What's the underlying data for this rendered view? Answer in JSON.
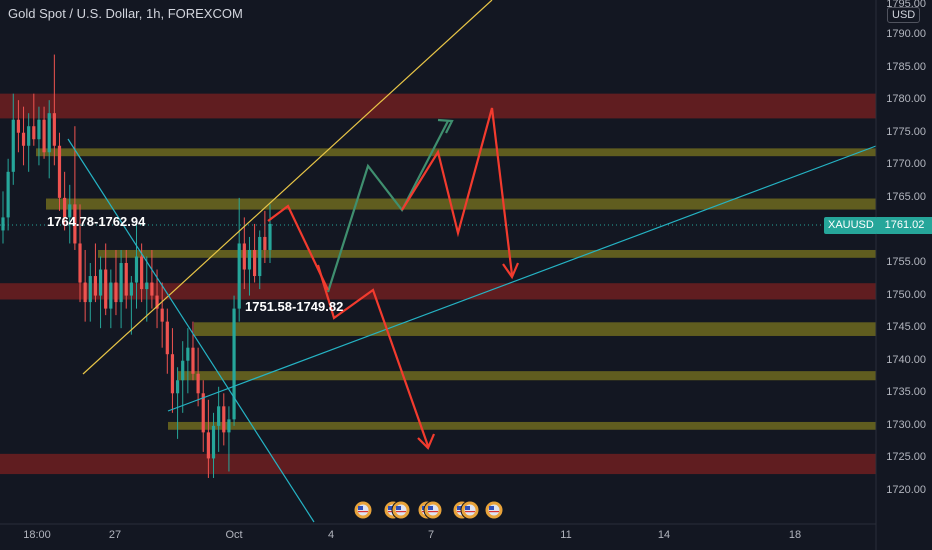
{
  "header": {
    "title": "Gold Spot / U.S. Dollar, 1h, FOREXCOM",
    "currency": "USD"
  },
  "price_tag": {
    "symbol": "XAUUSD",
    "price": "1761.02"
  },
  "colors": {
    "background": "#131722",
    "up": "#26a69a",
    "down": "#ef5350",
    "red_zone": "#7b2020",
    "yellow_zone": "#6e6a1e",
    "trend_yellow": "#e8c547",
    "trend_cyan": "#25b3c4",
    "path_green": "#3f8f6f",
    "path_red": "#f23b2e"
  },
  "chart_data": {
    "type": "candlestick",
    "title": "Gold Spot / U.S. Dollar, 1h, FOREXCOM",
    "ylim": [
      1719,
      1796
    ],
    "y_ticks": [
      1720,
      1725,
      1730,
      1735,
      1740,
      1745,
      1750,
      1755,
      1760,
      1765,
      1770,
      1775,
      1780,
      1785,
      1790
    ],
    "y_top_label": "1795.00",
    "x_ticks": [
      "18:00",
      "27",
      "Oct",
      "4",
      "7",
      "11",
      "14",
      "18"
    ],
    "last_price": 1761.02,
    "candles": [
      [
        1760,
        1766,
        1758,
        1762
      ],
      [
        1762,
        1771,
        1760,
        1769
      ],
      [
        1769,
        1781,
        1767,
        1777
      ],
      [
        1777,
        1780,
        1772,
        1775
      ],
      [
        1775,
        1779,
        1770,
        1773
      ],
      [
        1773,
        1778,
        1769,
        1776
      ],
      [
        1776,
        1781,
        1773,
        1774
      ],
      [
        1774,
        1779,
        1770,
        1777
      ],
      [
        1777,
        1779,
        1771,
        1772
      ],
      [
        1772,
        1780,
        1768,
        1778
      ],
      [
        1778,
        1787,
        1770,
        1773
      ],
      [
        1773,
        1775,
        1763,
        1765
      ],
      [
        1765,
        1769,
        1760,
        1762
      ],
      [
        1762,
        1767,
        1758,
        1764
      ],
      [
        1764,
        1776,
        1757,
        1758
      ],
      [
        1758,
        1764,
        1749,
        1752
      ],
      [
        1752,
        1757,
        1746,
        1749
      ],
      [
        1749,
        1755,
        1746,
        1753
      ],
      [
        1753,
        1758,
        1749,
        1750
      ],
      [
        1750,
        1756,
        1745,
        1754
      ],
      [
        1754,
        1758,
        1747,
        1748
      ],
      [
        1748,
        1754,
        1745,
        1752
      ],
      [
        1752,
        1757,
        1747,
        1749
      ],
      [
        1749,
        1757,
        1745,
        1755
      ],
      [
        1755,
        1757,
        1748,
        1750
      ],
      [
        1750,
        1753,
        1744,
        1752
      ],
      [
        1752,
        1761,
        1748,
        1756
      ],
      [
        1756,
        1758,
        1749,
        1751
      ],
      [
        1751,
        1756,
        1746,
        1752
      ],
      [
        1752,
        1757,
        1748,
        1750
      ],
      [
        1750,
        1754,
        1745,
        1748
      ],
      [
        1748,
        1752,
        1742,
        1746
      ],
      [
        1746,
        1748,
        1738,
        1741
      ],
      [
        1741,
        1745,
        1732,
        1735
      ],
      [
        1735,
        1739,
        1728,
        1737
      ],
      [
        1737,
        1743,
        1732,
        1740
      ],
      [
        1740,
        1745,
        1735,
        1742
      ],
      [
        1742,
        1746,
        1737,
        1738
      ],
      [
        1738,
        1742,
        1733,
        1735
      ],
      [
        1735,
        1737,
        1726,
        1729
      ],
      [
        1729,
        1734,
        1722,
        1725
      ],
      [
        1725,
        1732,
        1722,
        1730
      ],
      [
        1730,
        1736,
        1726,
        1733
      ],
      [
        1733,
        1735,
        1727,
        1729
      ],
      [
        1729,
        1733,
        1723,
        1731
      ],
      [
        1731,
        1750,
        1730,
        1748
      ],
      [
        1748,
        1765,
        1746,
        1758
      ],
      [
        1758,
        1762,
        1751,
        1754
      ],
      [
        1754,
        1759,
        1750,
        1757
      ],
      [
        1757,
        1761,
        1752,
        1753
      ],
      [
        1753,
        1760,
        1751,
        1759
      ],
      [
        1759,
        1763,
        1755,
        1757
      ],
      [
        1757,
        1764,
        1755,
        1761
      ]
    ],
    "zones": [
      {
        "color": "red",
        "from": 1777.2,
        "to": 1781.0
      },
      {
        "color": "yellow",
        "from": 1771.4,
        "to": 1772.6
      },
      {
        "color": "yellow",
        "from": 1763.2,
        "to": 1764.9
      },
      {
        "color": "yellow",
        "from": 1755.8,
        "to": 1757.0
      },
      {
        "color": "red",
        "from": 1749.4,
        "to": 1751.9
      },
      {
        "color": "yellow",
        "from": 1743.8,
        "to": 1745.9
      },
      {
        "color": "yellow",
        "from": 1737.0,
        "to": 1738.4
      },
      {
        "color": "yellow",
        "from": 1729.4,
        "to": 1730.6
      },
      {
        "color": "red",
        "from": 1722.6,
        "to": 1725.7
      }
    ],
    "annotations": [
      {
        "text": "1764.78-1762.94"
      },
      {
        "text": "1751.58-1749.82"
      }
    ],
    "event_icon_count": 7
  }
}
